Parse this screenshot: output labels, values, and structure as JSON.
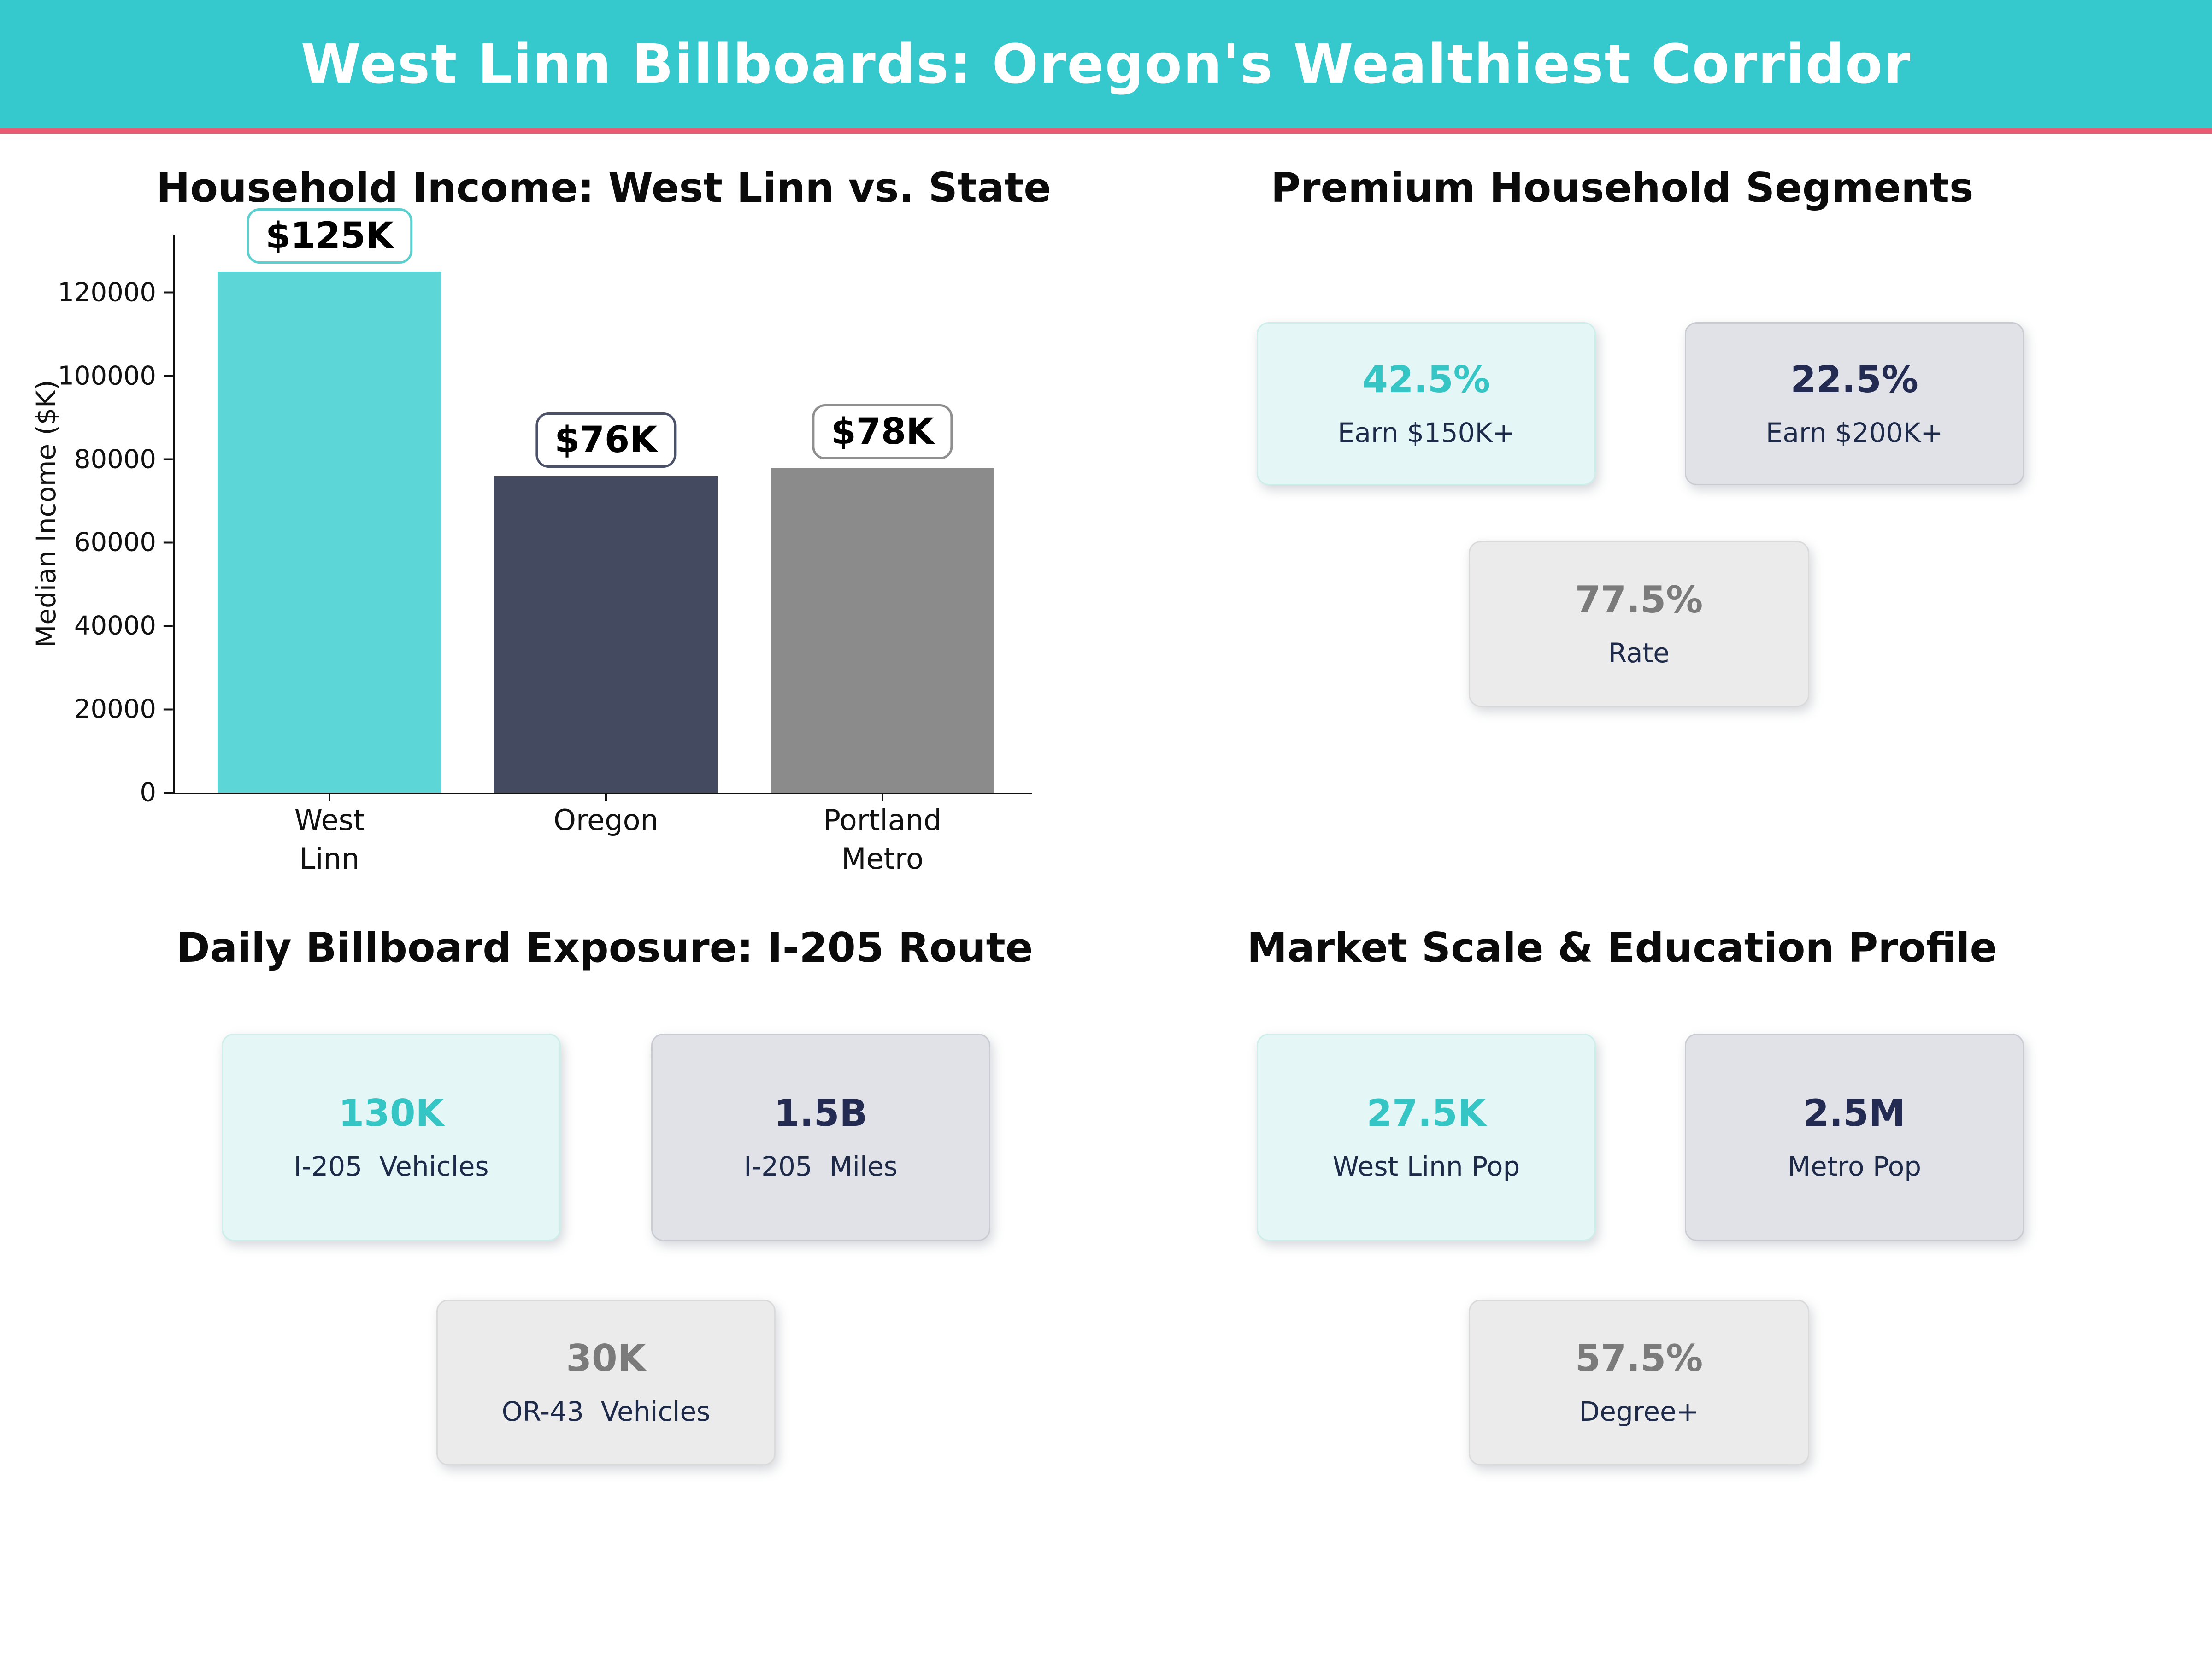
{
  "header": {
    "title": "West Linn Billboards: Oregon's Wealthiest Corridor",
    "bg_color": "#35c8cc",
    "accent_bar_color": "#ea5a72"
  },
  "chart_data": {
    "type": "bar",
    "title": "Household Income: West Linn vs. State",
    "xlabel": "",
    "ylabel": "Median Income ($K)",
    "categories": [
      "West Linn",
      "Oregon",
      "Portland\nMetro"
    ],
    "values": [
      125000,
      76000,
      78000
    ],
    "value_labels": [
      "$125K",
      "$76K",
      "$78K"
    ],
    "bar_colors": [
      "#5cd6d6",
      "#444b61",
      "#8b8b8b"
    ],
    "annotation_colors": [
      "#5ccfcf",
      "#4a5168",
      "#8f8f8f"
    ],
    "yticks": [
      0,
      20000,
      40000,
      60000,
      80000,
      100000,
      120000
    ],
    "ylim": [
      0,
      133800
    ],
    "grid": false,
    "legend": false
  },
  "sections": {
    "premium": {
      "title": "Premium Household Segments",
      "cards": [
        {
          "value": "42.5%",
          "label": "Earn $150K+",
          "accent": "#35c5c5"
        },
        {
          "value": "22.5%",
          "label": "Earn $200K+",
          "accent": "#232b52"
        },
        {
          "value": "77.5%",
          "label": "Rate",
          "accent": "#7b7b7b"
        }
      ]
    },
    "exposure": {
      "title": "Daily Billboard Exposure: I-205 Route",
      "cards": [
        {
          "value": "130K",
          "label": "I-205  Vehicles",
          "accent": "#35c5c5"
        },
        {
          "value": "1.5B",
          "label": "I-205  Miles",
          "accent": "#232b52"
        },
        {
          "value": "30K",
          "label": "OR-43  Vehicles",
          "accent": "#7b7b7b"
        }
      ]
    },
    "market": {
      "title": "Market Scale & Education Profile",
      "cards": [
        {
          "value": "27.5K",
          "label": "West Linn Pop",
          "accent": "#35c5c5"
        },
        {
          "value": "2.5M",
          "label": "Metro Pop",
          "accent": "#232b52"
        },
        {
          "value": "57.5%",
          "label": "Degree+",
          "accent": "#7b7b7b"
        }
      ]
    }
  },
  "card_label_color": "#1e2a4a"
}
